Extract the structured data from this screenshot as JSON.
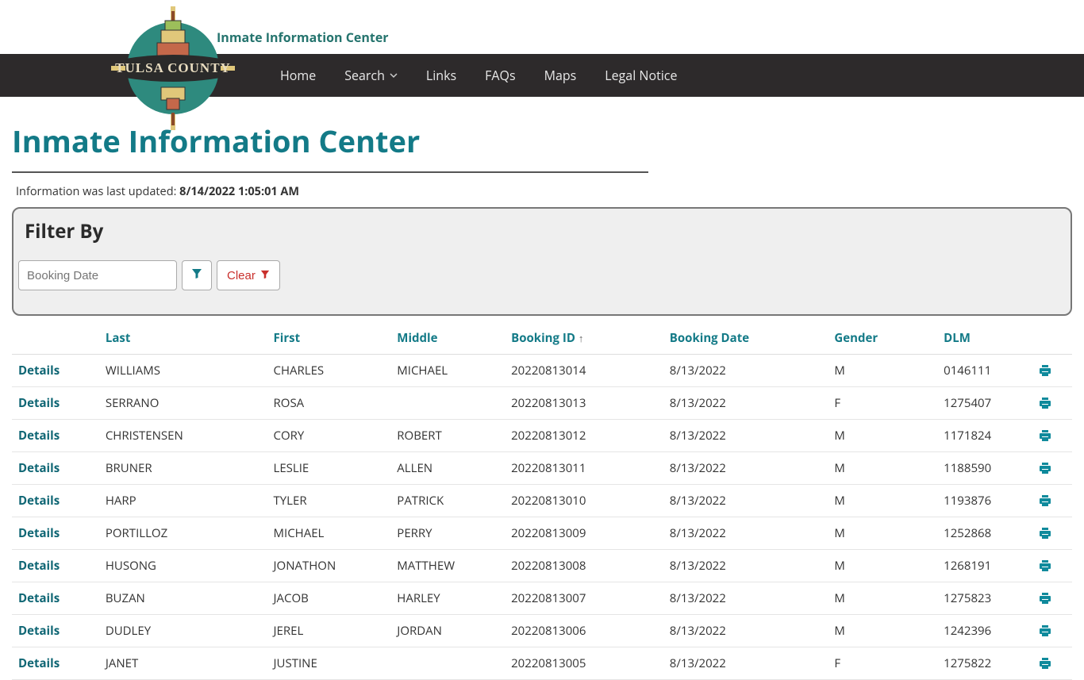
{
  "header": {
    "site_title": "Inmate Information Center",
    "logo_text_top": "TULSA",
    "logo_text_bottom": "COUNTY"
  },
  "nav": {
    "items": [
      {
        "label": "Home"
      },
      {
        "label": "Search",
        "has_dropdown": true
      },
      {
        "label": "Links"
      },
      {
        "label": "FAQs"
      },
      {
        "label": "Maps"
      },
      {
        "label": "Legal Notice"
      }
    ]
  },
  "page": {
    "title": "Inmate Information Center",
    "updated_prefix": "Information was last updated: ",
    "updated_value": "8/14/2022 1:05:01 AM"
  },
  "filter": {
    "title": "Filter By",
    "date_placeholder": "Booking Date",
    "clear_label": "Clear"
  },
  "table": {
    "columns": {
      "details": "",
      "last": "Last",
      "first": "First",
      "middle": "Middle",
      "booking_id": "Booking ID",
      "booking_date": "Booking Date",
      "gender": "Gender",
      "dlm": "DLM"
    },
    "sort_indicator": "↑",
    "details_label": "Details",
    "rows": [
      {
        "last": "WILLIAMS",
        "first": "CHARLES",
        "middle": "MICHAEL",
        "booking_id": "20220813014",
        "booking_date": "8/13/2022",
        "gender": "M",
        "dlm": "0146111"
      },
      {
        "last": "SERRANO",
        "first": "ROSA",
        "middle": "",
        "booking_id": "20220813013",
        "booking_date": "8/13/2022",
        "gender": "F",
        "dlm": "1275407"
      },
      {
        "last": "CHRISTENSEN",
        "first": "CORY",
        "middle": "ROBERT",
        "booking_id": "20220813012",
        "booking_date": "8/13/2022",
        "gender": "M",
        "dlm": "1171824"
      },
      {
        "last": "BRUNER",
        "first": "LESLIE",
        "middle": "ALLEN",
        "booking_id": "20220813011",
        "booking_date": "8/13/2022",
        "gender": "M",
        "dlm": "1188590"
      },
      {
        "last": "HARP",
        "first": "TYLER",
        "middle": "PATRICK",
        "booking_id": "20220813010",
        "booking_date": "8/13/2022",
        "gender": "M",
        "dlm": "1193876"
      },
      {
        "last": "PORTILLOZ",
        "first": "MICHAEL",
        "middle": "PERRY",
        "booking_id": "20220813009",
        "booking_date": "8/13/2022",
        "gender": "M",
        "dlm": "1252868"
      },
      {
        "last": "HUSONG",
        "first": "JONATHON",
        "middle": "MATTHEW",
        "booking_id": "20220813008",
        "booking_date": "8/13/2022",
        "gender": "M",
        "dlm": "1268191"
      },
      {
        "last": "BUZAN",
        "first": "JACOB",
        "middle": "HARLEY",
        "booking_id": "20220813007",
        "booking_date": "8/13/2022",
        "gender": "M",
        "dlm": "1275823"
      },
      {
        "last": "DUDLEY",
        "first": "JEREL",
        "middle": "JORDAN",
        "booking_id": "20220813006",
        "booking_date": "8/13/2022",
        "gender": "M",
        "dlm": "1242396"
      },
      {
        "last": "JANET",
        "first": "JUSTINE",
        "middle": "",
        "booking_id": "20220813005",
        "booking_date": "8/13/2022",
        "gender": "F",
        "dlm": "1275822"
      }
    ]
  },
  "colors": {
    "accent_teal": "#137a87",
    "accent_teal_dark": "#0f6674",
    "nav_bg": "#2d2a2b",
    "danger": "#c9302c",
    "border": "#aaa",
    "row_border": "#e5e5e5"
  }
}
